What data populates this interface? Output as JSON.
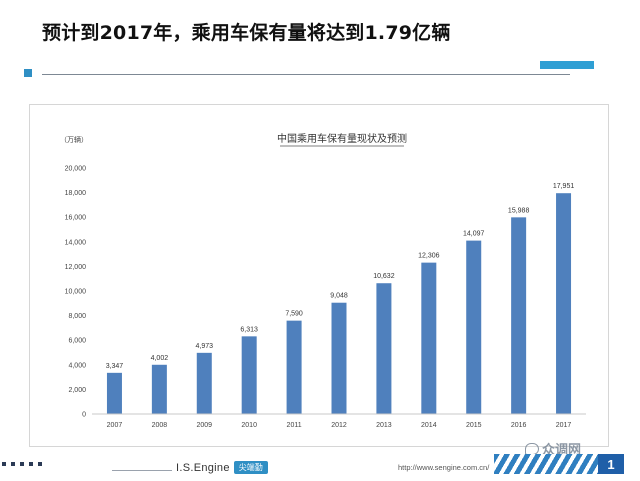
{
  "header": {
    "title": "预计到2017年，乘用车保有量将达到1.79亿辆"
  },
  "chart_data": {
    "type": "bar",
    "title": "中国乘用车保有量现状及预测",
    "unit_label": "（万辆）",
    "categories": [
      "2007",
      "2008",
      "2009",
      "2010",
      "2011",
      "2012",
      "2013",
      "2014",
      "2015",
      "2016",
      "2017"
    ],
    "values": [
      3347,
      4002,
      4973,
      6313,
      7590,
      9048,
      10632,
      12306,
      14097,
      15988,
      17951
    ],
    "value_labels": [
      "3,347",
      "4,002",
      "4,973",
      "6,313",
      "7,590",
      "9,048",
      "10,632",
      "12,306",
      "14,097",
      "15,988",
      "17,951"
    ],
    "y_ticks": [
      0,
      2000,
      4000,
      6000,
      8000,
      10000,
      12000,
      14000,
      16000,
      18000,
      20000
    ],
    "y_tick_labels": [
      "0",
      "2,000",
      "4,000",
      "6,000",
      "8,000",
      "10,000",
      "12,000",
      "14,000",
      "16,000",
      "18,000",
      "20,000"
    ],
    "ylim": [
      0,
      20000
    ],
    "grid": false,
    "bar_color": "#4f80bd"
  },
  "footer": {
    "brand_name": "I.S.Engine",
    "brand_tag": "尖端勤",
    "url": "http://www.sengine.com.cn/",
    "page_number": "1",
    "watermark": "众调网",
    "accent_color": "#2f8fc4"
  }
}
